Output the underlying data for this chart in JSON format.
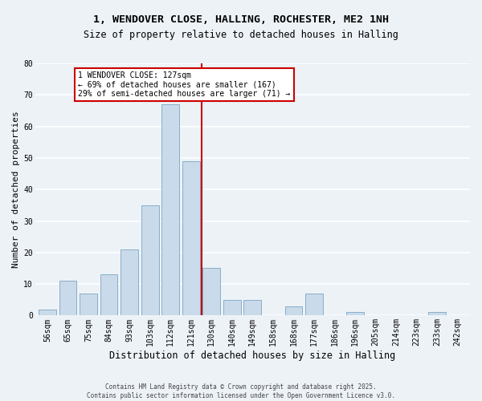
{
  "title_line1": "1, WENDOVER CLOSE, HALLING, ROCHESTER, ME2 1NH",
  "title_line2": "Size of property relative to detached houses in Halling",
  "xlabel": "Distribution of detached houses by size in Halling",
  "ylabel": "Number of detached properties",
  "categories": [
    "56sqm",
    "65sqm",
    "75sqm",
    "84sqm",
    "93sqm",
    "103sqm",
    "112sqm",
    "121sqm",
    "130sqm",
    "140sqm",
    "149sqm",
    "158sqm",
    "168sqm",
    "177sqm",
    "186sqm",
    "196sqm",
    "205sqm",
    "214sqm",
    "223sqm",
    "233sqm",
    "242sqm"
  ],
  "values": [
    2,
    11,
    7,
    13,
    21,
    35,
    67,
    49,
    15,
    5,
    5,
    0,
    3,
    7,
    0,
    1,
    0,
    0,
    0,
    1,
    0
  ],
  "bar_color": "#c9daea",
  "bar_edge_color": "#88aec8",
  "vline_x_index": 7.5,
  "vline_color": "#cc0000",
  "ylim": [
    0,
    80
  ],
  "yticks": [
    0,
    10,
    20,
    30,
    40,
    50,
    60,
    70,
    80
  ],
  "annotation_text": "1 WENDOVER CLOSE: 127sqm\n← 69% of detached houses are smaller (167)\n29% of semi-detached houses are larger (71) →",
  "annotation_box_color": "#ffffff",
  "annotation_box_edge_color": "#cc0000",
  "footer_text": "Contains HM Land Registry data © Crown copyright and database right 2025.\nContains public sector information licensed under the Open Government Licence v3.0.",
  "background_color": "#edf2f7",
  "grid_color": "#ffffff",
  "title_fontsize": 9.5,
  "subtitle_fontsize": 8.5,
  "ylabel_fontsize": 8,
  "xlabel_fontsize": 8.5,
  "tick_fontsize": 7,
  "annot_fontsize": 7,
  "footer_fontsize": 5.5
}
